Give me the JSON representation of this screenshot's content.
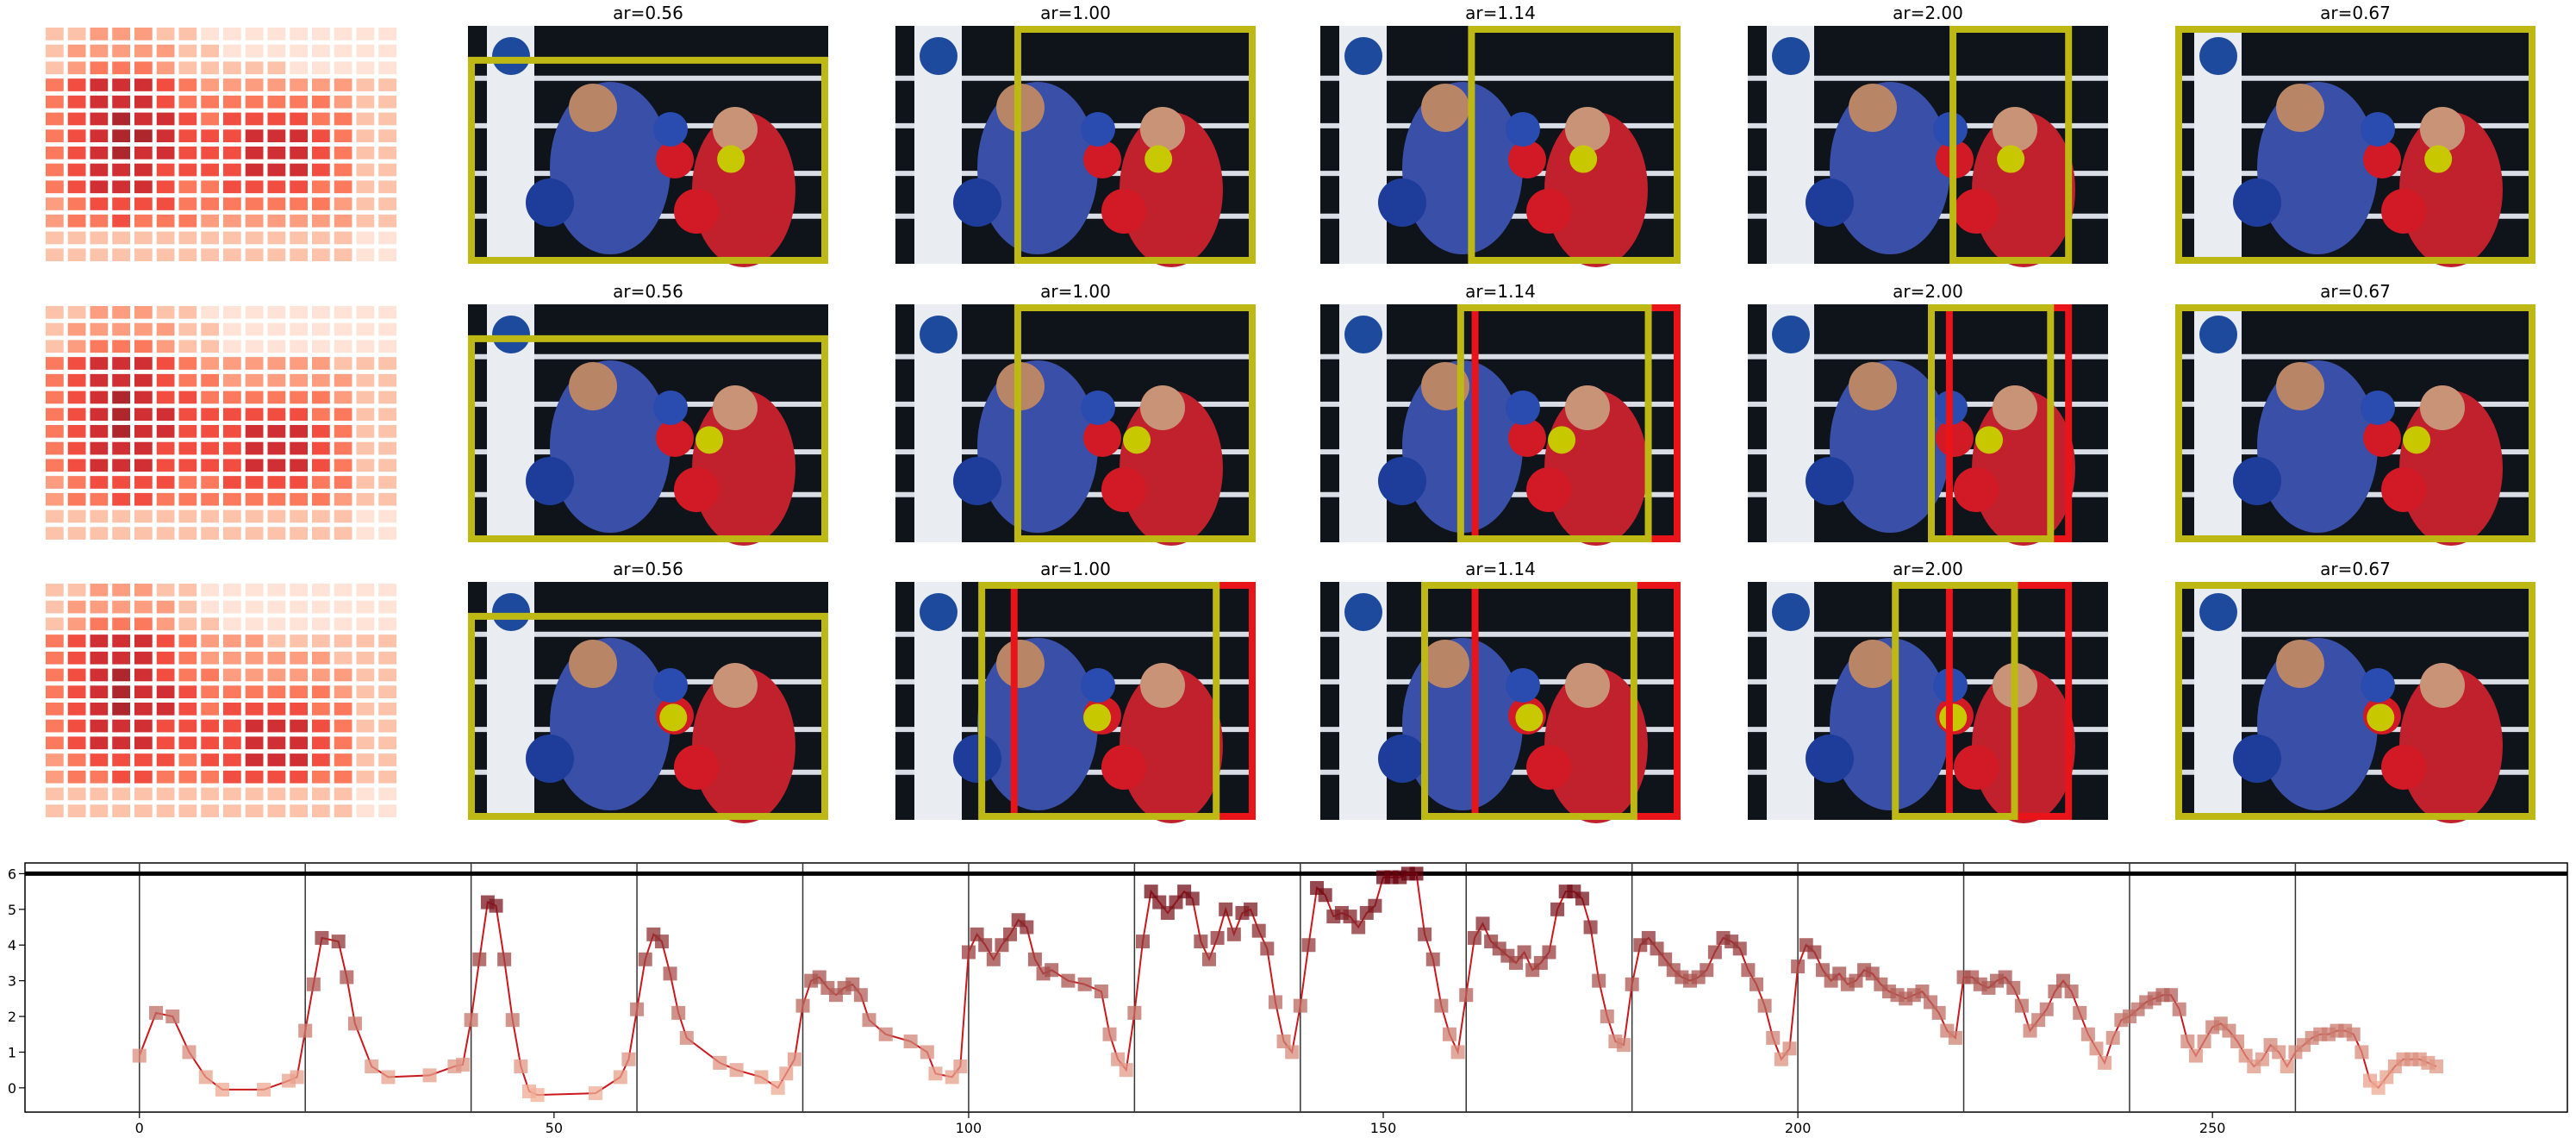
{
  "panels": {
    "titles": [
      [
        "ar=0.56",
        "ar=1.00",
        "ar=1.14",
        "ar=2.00",
        "ar=0.67"
      ],
      [
        "ar=0.56",
        "ar=1.00",
        "ar=1.14",
        "ar=2.00",
        "ar=0.67"
      ],
      [
        "ar=0.56",
        "ar=1.00",
        "ar=1.14",
        "ar=2.00",
        "ar=0.67"
      ]
    ]
  },
  "chart_data": {
    "type": "line",
    "x": [
      0,
      2,
      4,
      6,
      8,
      10,
      15,
      18,
      19,
      20,
      21,
      22,
      24,
      25,
      26,
      28,
      30,
      35,
      38,
      39,
      40,
      41,
      42,
      43,
      44,
      45,
      46,
      47,
      48,
      55,
      58,
      59,
      60,
      61,
      62,
      63,
      64,
      65,
      66,
      70,
      72,
      75,
      77,
      78,
      79,
      80,
      81,
      82,
      83,
      84,
      85,
      86,
      87,
      88,
      90,
      93,
      95,
      96,
      98,
      99,
      100,
      101,
      102,
      103,
      104,
      105,
      106,
      107,
      108,
      109,
      110,
      112,
      114,
      116,
      117,
      118,
      119,
      120,
      121,
      122,
      123,
      124,
      125,
      126,
      127,
      128,
      129,
      130,
      131,
      132,
      133,
      134,
      135,
      136,
      137,
      138,
      139,
      140,
      141,
      142,
      143,
      144,
      145,
      146,
      147,
      148,
      149,
      150,
      151,
      152,
      153,
      154,
      155,
      156,
      157,
      158,
      159,
      160,
      161,
      162,
      163,
      164,
      165,
      166,
      167,
      168,
      169,
      170,
      171,
      172,
      173,
      174,
      175,
      176,
      177,
      178,
      179,
      180,
      181,
      182,
      183,
      184,
      185,
      186,
      187,
      188,
      189,
      190,
      191,
      192,
      193,
      194,
      195,
      196,
      197,
      198,
      199,
      200,
      201,
      202,
      203,
      204,
      205,
      206,
      207,
      208,
      209,
      210,
      211,
      212,
      213,
      214,
      215,
      216,
      217,
      218,
      219,
      220,
      221,
      222,
      223,
      224,
      225,
      226,
      227,
      228,
      229,
      230,
      231,
      232,
      233,
      234,
      235,
      236,
      237,
      238,
      239,
      240,
      241,
      242,
      243,
      244,
      245,
      246,
      247,
      248,
      249,
      250,
      251,
      252,
      253,
      254,
      255,
      256,
      257,
      258,
      259,
      260,
      261,
      262,
      263,
      264,
      265,
      266,
      267,
      268,
      269,
      270,
      271,
      272,
      273,
      274,
      275,
      276,
      277
    ],
    "values": [
      0.9,
      2.1,
      2.0,
      1.0,
      0.3,
      -0.05,
      -0.05,
      0.2,
      0.3,
      1.6,
      2.9,
      4.2,
      4.1,
      3.1,
      1.8,
      0.6,
      0.3,
      0.35,
      0.6,
      0.65,
      1.9,
      3.6,
      5.2,
      5.1,
      3.6,
      1.9,
      0.6,
      -0.1,
      -0.2,
      -0.15,
      0.3,
      0.8,
      2.2,
      3.6,
      4.3,
      4.1,
      3.2,
      2.1,
      1.4,
      0.7,
      0.5,
      0.3,
      0.0,
      0.4,
      0.8,
      2.3,
      3.0,
      3.1,
      2.8,
      2.6,
      2.8,
      2.9,
      2.6,
      1.9,
      1.5,
      1.3,
      1.0,
      0.4,
      0.3,
      0.6,
      3.8,
      4.3,
      4.0,
      3.6,
      4.0,
      4.3,
      4.7,
      4.5,
      3.6,
      3.2,
      3.3,
      3.0,
      2.9,
      2.7,
      1.5,
      0.8,
      0.5,
      2.1,
      4.1,
      5.5,
      5.2,
      4.9,
      5.2,
      5.5,
      5.3,
      4.1,
      3.6,
      4.2,
      5.0,
      4.3,
      4.9,
      5.0,
      4.4,
      3.9,
      2.4,
      1.3,
      1.0,
      2.3,
      4.0,
      5.6,
      5.4,
      4.8,
      4.9,
      4.8,
      4.5,
      4.9,
      5.1,
      5.9,
      5.9,
      5.9,
      6.0,
      6.0,
      4.3,
      3.6,
      2.3,
      1.5,
      1.0,
      2.6,
      4.2,
      4.6,
      4.1,
      3.9,
      3.7,
      3.5,
      3.8,
      3.3,
      3.5,
      3.8,
      5.0,
      5.5,
      5.5,
      5.3,
      4.5,
      3.0,
      2.0,
      1.3,
      1.2,
      2.9,
      4.0,
      4.2,
      3.9,
      3.6,
      3.3,
      3.1,
      3.0,
      3.1,
      3.3,
      3.8,
      4.2,
      4.1,
      3.9,
      3.3,
      2.9,
      2.3,
      1.4,
      0.8,
      1.1,
      3.4,
      4.0,
      3.8,
      3.3,
      3.0,
      3.2,
      2.9,
      3.0,
      3.3,
      3.2,
      2.9,
      2.7,
      2.6,
      2.5,
      2.6,
      2.7,
      2.4,
      2.1,
      1.6,
      1.4,
      3.1,
      3.1,
      2.9,
      2.8,
      3.0,
      3.1,
      2.8,
      2.3,
      1.6,
      1.9,
      2.2,
      2.7,
      3.0,
      2.7,
      2.1,
      1.5,
      1.1,
      0.7,
      1.4,
      1.9,
      2.0,
      2.2,
      2.4,
      2.5,
      2.6,
      2.6,
      2.2,
      1.3,
      0.9,
      1.3,
      1.7,
      1.8,
      1.6,
      1.3,
      0.9,
      0.6,
      0.8,
      1.2,
      1.0,
      0.6,
      1.0,
      1.2,
      1.4,
      1.5,
      1.5,
      1.6,
      1.6,
      1.5,
      1.0,
      0.2,
      0.0,
      0.3,
      0.6,
      0.8,
      0.8,
      0.8,
      0.7,
      0.6
    ],
    "color": "#cb181d",
    "marker_colormap": [
      "#fcbba1",
      "#67000d"
    ],
    "vlines": [
      0,
      20,
      40,
      60,
      80,
      100,
      120,
      140,
      160,
      180,
      200,
      220,
      240,
      260
    ],
    "hline": 6,
    "xlim": [
      -13.8,
      292.8
    ],
    "ylim": [
      -0.68,
      6.3
    ],
    "xticks": [
      0,
      50,
      100,
      150,
      200,
      250
    ],
    "yticks": [
      0,
      1,
      2,
      3,
      4,
      5,
      6
    ]
  }
}
